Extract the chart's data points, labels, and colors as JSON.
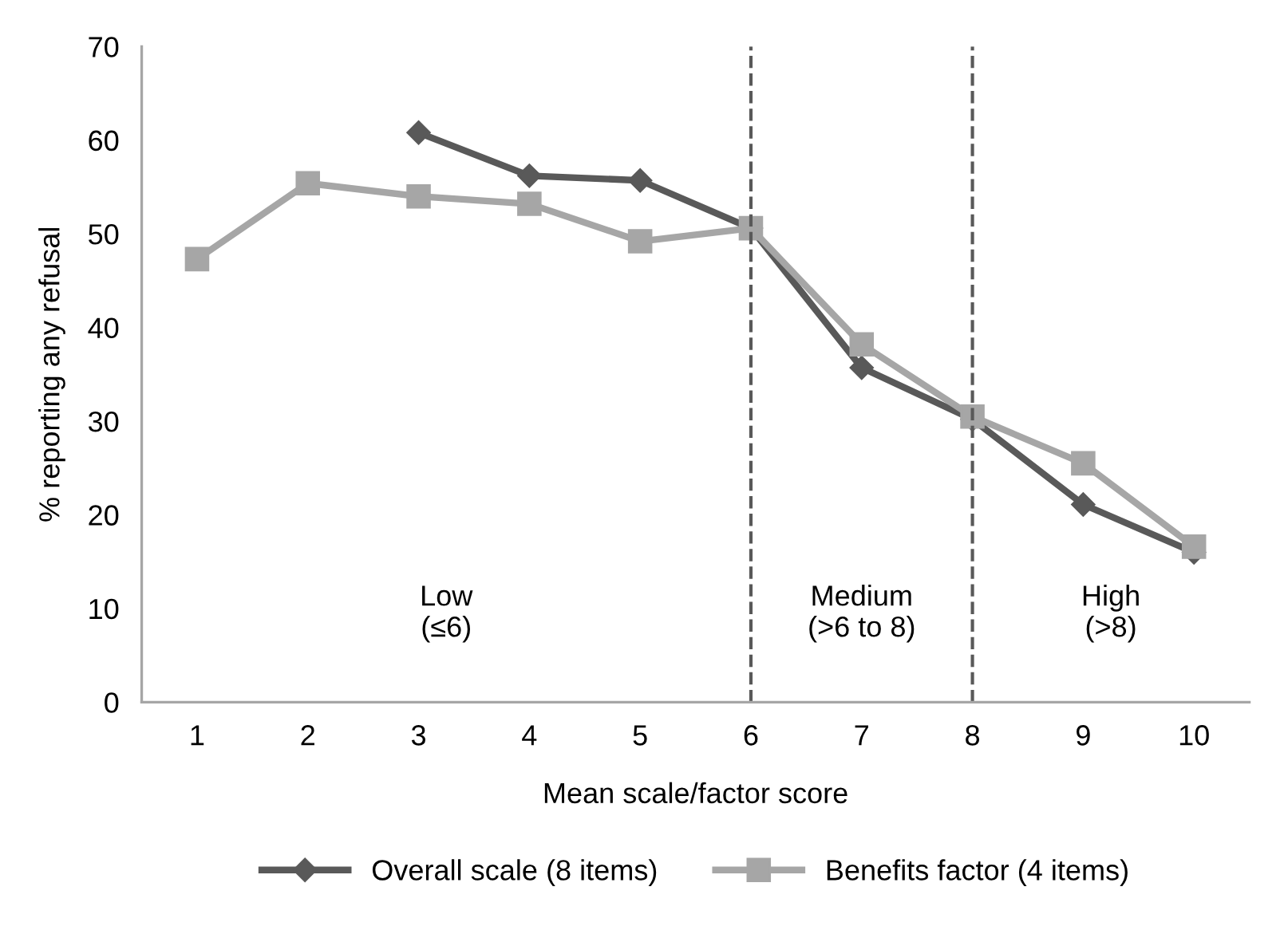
{
  "chart_data": {
    "type": "line",
    "xlabel": "Mean scale/factor score",
    "ylabel": "% reporting any refusal",
    "x": [
      1,
      2,
      3,
      4,
      5,
      6,
      7,
      8,
      9,
      10
    ],
    "xlim": [
      0.5,
      10.5
    ],
    "xticks": [
      1,
      2,
      3,
      4,
      5,
      6,
      7,
      8,
      9,
      10
    ],
    "ylim": [
      0,
      70
    ],
    "yticks": [
      0,
      10,
      20,
      30,
      40,
      50,
      60,
      70
    ],
    "grid": false,
    "legend": "bottom",
    "series": [
      {
        "name": "Overall scale (8 items)",
        "color": "#595959",
        "marker": "diamond",
        "values": [
          null,
          null,
          60.8,
          56.2,
          55.7,
          50.6,
          35.7,
          30.2,
          21.1,
          16.0
        ]
      },
      {
        "name": "Benefits factor (4 items)",
        "color": "#a6a6a6",
        "marker": "square",
        "values": [
          47.3,
          55.4,
          54.0,
          53.2,
          49.2,
          50.6,
          38.2,
          30.5,
          25.5,
          16.6
        ]
      }
    ],
    "ref_lines": [
      {
        "axis": "x",
        "value": 6,
        "color": "#595959",
        "line_style": "dashed"
      },
      {
        "axis": "x",
        "value": 8,
        "color": "#595959",
        "line_style": "dashed"
      }
    ],
    "annotations": [
      "Low\n(≤6)",
      "Medium\n(>6 to 8)",
      "High\n(>8)"
    ]
  }
}
